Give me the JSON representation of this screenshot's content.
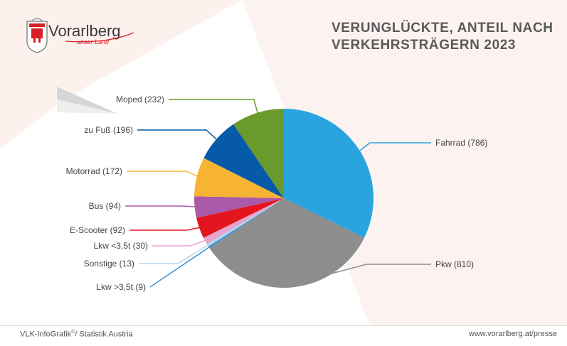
{
  "brand": {
    "name": "Vorarlberg",
    "tagline": "unser Land",
    "red": "#d91f26",
    "gray": "#6f6f6f"
  },
  "title": {
    "line1": "VERUNGLÜCKTE, ANTEIL NACH",
    "line2": "VERKEHRSTRÄGERN 2023"
  },
  "footer": {
    "source_prefix": "VLK-InfoGrafik",
    "source_mark": "©",
    "source_suffix": "/ Statistik Austria",
    "url": "www.vorarlberg.at/presse"
  },
  "chart_data": {
    "type": "pie",
    "title": "VERUNGLÜCKTE, ANTEIL NACH VERKEHRSTRÄGERN 2023",
    "legend": "none",
    "slices": [
      {
        "label": "Fahrrad (786)",
        "value": 786,
        "color": "#2aa4df"
      },
      {
        "label": "Pkw (810)",
        "value": 810,
        "color": "#8d8d8d"
      },
      {
        "label": "Lkw >3,5t (9)",
        "value": 9,
        "color": "#3a93d3"
      },
      {
        "label": "Sonstige (13)",
        "value": 13,
        "color": "#b9d4ea"
      },
      {
        "label": "Lkw <3,5t (30)",
        "value": 30,
        "color": "#e7a3cf"
      },
      {
        "label": "E-Scooter (92)",
        "value": 92,
        "color": "#e3161f"
      },
      {
        "label": "Bus (94)",
        "value": 94,
        "color": "#a95aa9"
      },
      {
        "label": "Motorrad (172)",
        "value": 172,
        "color": "#f6b334"
      },
      {
        "label": "zu Fuß (196)",
        "value": 196,
        "color": "#075aa8"
      },
      {
        "label": "Moped (232)",
        "value": 232,
        "color": "#6a9a2b"
      }
    ]
  }
}
